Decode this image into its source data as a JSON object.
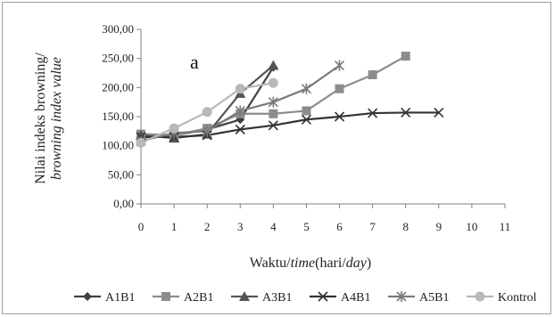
{
  "chart_data": {
    "type": "line",
    "annotation": "a",
    "xlabel": {
      "plain1": "Waktu/",
      "italic1": "time",
      "plain2": "(hari/",
      "italic2": "day",
      "plain3": ")"
    },
    "ylabel": {
      "line1": "Nilai indeks browning/",
      "line2": "browning index value"
    },
    "x_ticks": [
      "0",
      "1",
      "2",
      "3",
      "4",
      "5",
      "6",
      "7",
      "8",
      "9",
      "10",
      "11"
    ],
    "y_ticks": [
      "0,00",
      "50,00",
      "100,00",
      "150,00",
      "200,00",
      "250,00",
      "300,00"
    ],
    "xlim": [
      0,
      11
    ],
    "ylim": [
      0,
      300
    ],
    "grid": false,
    "legend_position": "bottom",
    "series": [
      {
        "name": "A1B1",
        "marker": "diamond",
        "color": "#404040",
        "x": [
          0,
          1,
          2,
          3,
          4
        ],
        "y": [
          120,
          118,
          128,
          145,
          235
        ]
      },
      {
        "name": "A2B1",
        "marker": "square",
        "color": "#8c8c8c",
        "x": [
          0,
          1,
          2,
          3,
          4,
          5,
          6,
          7,
          8
        ],
        "y": [
          120,
          118,
          130,
          155,
          155,
          160,
          198,
          222,
          254
        ]
      },
      {
        "name": "A3B1",
        "marker": "triangle",
        "color": "#555555",
        "x": [
          0,
          1,
          2,
          3,
          4
        ],
        "y": [
          118,
          113,
          120,
          190,
          238
        ]
      },
      {
        "name": "A4B1",
        "marker": "x",
        "color": "#333333",
        "x": [
          0,
          1,
          2,
          3,
          4,
          5,
          6,
          7,
          8,
          9
        ],
        "y": [
          115,
          115,
          118,
          128,
          135,
          145,
          150,
          156,
          157,
          157
        ]
      },
      {
        "name": "A5B1",
        "marker": "star",
        "color": "#7a7a7a",
        "x": [
          0,
          1,
          2,
          3,
          4,
          5,
          6
        ],
        "y": [
          108,
          122,
          125,
          160,
          175,
          198,
          238
        ]
      },
      {
        "name": "Kontrol",
        "marker": "circle",
        "color": "#b8b8b8",
        "x": [
          0,
          1,
          2,
          3,
          4
        ],
        "y": [
          105,
          130,
          158,
          198,
          208
        ]
      }
    ]
  }
}
